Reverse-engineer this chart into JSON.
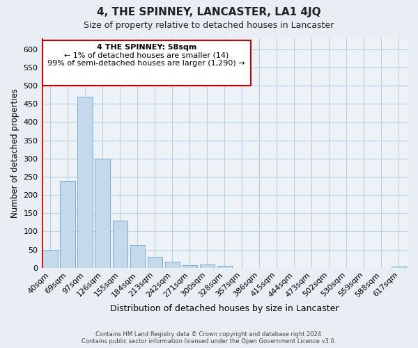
{
  "title": "4, THE SPINNEY, LANCASTER, LA1 4JQ",
  "subtitle": "Size of property relative to detached houses in Lancaster",
  "xlabel": "Distribution of detached houses by size in Lancaster",
  "ylabel": "Number of detached properties",
  "bar_color": "#c5d9ec",
  "bar_edge_color": "#7aafd4",
  "annotation_box_color": "#cc0000",
  "annotation_line1": "4 THE SPINNEY: 58sqm",
  "annotation_line2": "← 1% of detached houses are smaller (14)",
  "annotation_line3": "99% of semi-detached houses are larger (1,290) →",
  "categories": [
    "40sqm",
    "69sqm",
    "97sqm",
    "126sqm",
    "155sqm",
    "184sqm",
    "213sqm",
    "242sqm",
    "271sqm",
    "300sqm",
    "328sqm",
    "357sqm",
    "386sqm",
    "415sqm",
    "444sqm",
    "473sqm",
    "502sqm",
    "530sqm",
    "559sqm",
    "588sqm",
    "617sqm"
  ],
  "values": [
    50,
    238,
    470,
    300,
    130,
    63,
    30,
    17,
    8,
    10,
    5,
    0,
    0,
    0,
    0,
    0,
    0,
    0,
    0,
    0,
    3
  ],
  "ylim": [
    0,
    630
  ],
  "yticks": [
    0,
    50,
    100,
    150,
    200,
    250,
    300,
    350,
    400,
    450,
    500,
    550,
    600
  ],
  "footer_line1": "Contains HM Land Registry data © Crown copyright and database right 2024.",
  "footer_line2": "Contains public sector information licensed under the Open Government Licence v3.0.",
  "bg_color": "#e8eef4",
  "plot_bg_color": "#edf2f7",
  "grid_color": "#b8cfe0"
}
